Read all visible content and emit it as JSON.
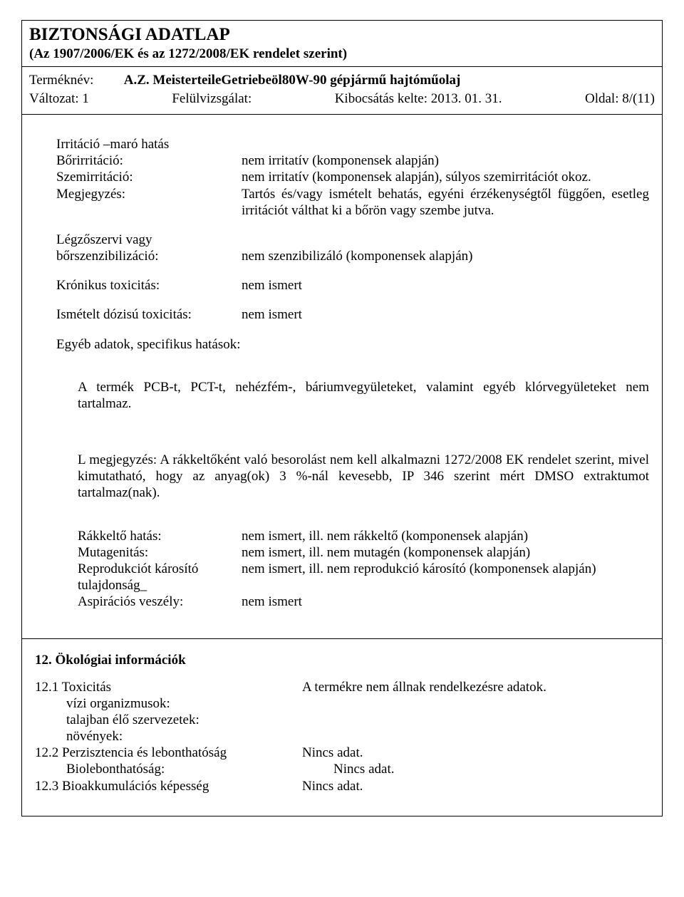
{
  "header": {
    "title": "BIZTONSÁGI ADATLAP",
    "subtitle": "(Az 1907/2006/EK és az 1272/2008/EK rendelet szerint)"
  },
  "info": {
    "productNameLabel": "Terméknév:",
    "productName": "A.Z. MeisterteileGetriebeöl80W-90 gépjármű hajtóműolaj",
    "version": "Változat: 1",
    "revision": "Felülvizsgálat:",
    "issued": "Kibocsátás kelte: 2013. 01. 31.",
    "page": "Oldal: 8/(11)"
  },
  "body": {
    "irritHeading": "Irritáció –maró hatás",
    "rows1": [
      {
        "label": "Bőrirritáció:",
        "value": "nem irritatív (komponensek alapján)"
      },
      {
        "label": "Szemirritáció:",
        "value": "nem irritatív (komponensek alapján), súlyos szemirritációt okoz."
      },
      {
        "label": "Megjegyzés:",
        "value": "Tartós és/vagy ismételt behatás, egyéni érzékenységtől függően, esetleg irritációt válthat ki a bőrön vagy szembe jutva."
      }
    ],
    "resp1": "Légzőszervi vagy",
    "resp2": "bőrszenzibilizáció:",
    "respValue": "nem szenzibilizáló (komponensek alapján)",
    "chronic": {
      "label": "Krónikus toxicitás:",
      "value": "nem ismert"
    },
    "repeated": {
      "label": "Ismételt dózisú toxicitás:",
      "value": "nem ismert"
    },
    "otherHeading": "Egyéb adatok, specifikus hatások:",
    "para1": "A termék PCB-t, PCT-t, nehézfém-, báriumvegyületeket, valamint egyéb klórvegyületeket nem tartalmaz.",
    "para2": "L megjegyzés: A rákkeltőként való besorolást nem kell alkalmazni 1272/2008 EK rendelet szerint, mivel kimutatható, hogy az anyag(ok) 3 %-nál kevesebb, IP 346 szerint mért DMSO extraktumot tartalmaz(nak).",
    "rows2": [
      {
        "label": "Rákkeltő hatás:",
        "value": "nem ismert, ill. nem rákkeltő (komponensek alapján)"
      },
      {
        "label": "Mutagenitás:",
        "value": "nem ismert, ill. nem mutagén (komponensek alapján)"
      }
    ],
    "repro1": "Reprodukciót károsító",
    "repro2": "tulajdonság_",
    "reproValue": "nem ismert, ill. nem reprodukció károsító (komponensek alapján)",
    "asp": {
      "label": "Aspirációs veszély:",
      "value": "nem ismert"
    }
  },
  "sect12": {
    "heading": "12.  Ökológiai információk",
    "rows": [
      {
        "left": "12.1 Toxicitás",
        "right": "A termékre nem állnak rendelkezésre adatok.",
        "indent": false
      },
      {
        "left": "vízi organizmusok:",
        "right": "",
        "indent": true
      },
      {
        "left": "talajban élő szervezetek:",
        "right": "",
        "indent": true
      },
      {
        "left": "növények:",
        "right": "",
        "indent": true
      },
      {
        "left": "12.2 Perzisztencia és lebonthatóság",
        "right": "Nincs adat.",
        "indent": false
      },
      {
        "left": "Biolebonthatóság:",
        "right": "Nincs adat.",
        "indent": true
      },
      {
        "left": "12.3 Bioakkumulációs képesség",
        "right": "Nincs adat.",
        "indent": false
      }
    ]
  }
}
